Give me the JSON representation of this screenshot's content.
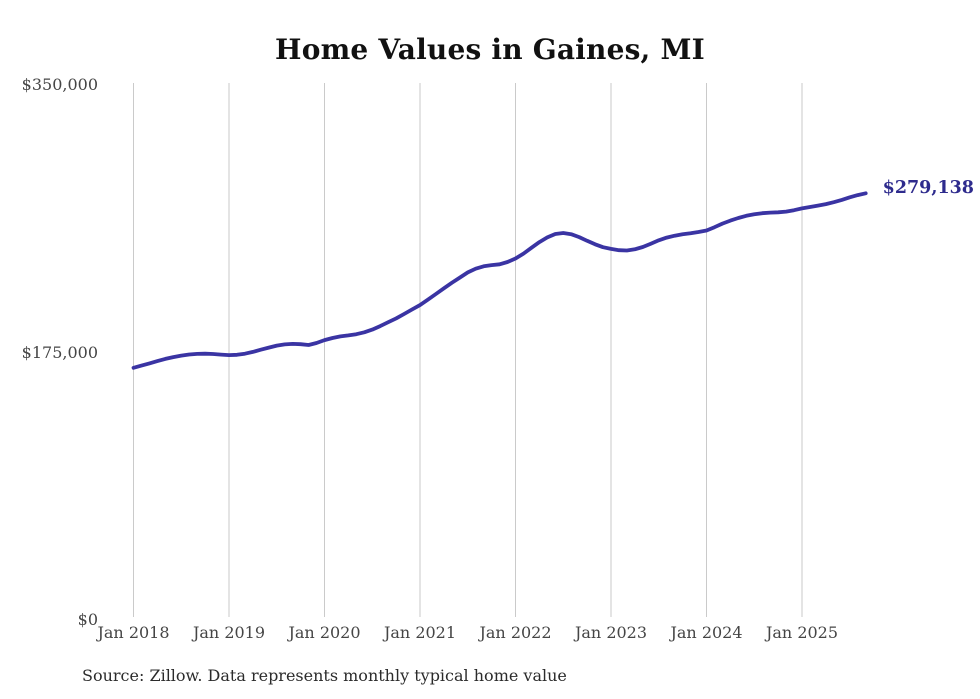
{
  "title": "Home Values in Gaines, MI",
  "source_note": "Source: Zillow. Data represents monthly typical home value",
  "end_label": "$279,138",
  "colors": {
    "line": "#3a34a3",
    "end_label": "#2e2b8d",
    "gridline": "#cacaca",
    "title": "#111111",
    "axis_label": "#454545",
    "source": "#2b2b2b"
  },
  "chart_data": {
    "type": "line",
    "title": "Home Values in Gaines, MI",
    "xlabel": "",
    "ylabel": "",
    "frequency": "monthly",
    "x_start": "Jan 2018",
    "x_end": "Sep 2025",
    "ylim": [
      0,
      350000
    ],
    "grid": "vertical-only",
    "legend": "none",
    "y_ticks": [
      {
        "label": "$350,000",
        "value": 350000
      },
      {
        "label": "$175,000",
        "value": 175000
      },
      {
        "label": "$0",
        "value": 0
      }
    ],
    "x_ticks": [
      {
        "label": "Jan 2018",
        "month_index": 0
      },
      {
        "label": "Jan 2019",
        "month_index": 12
      },
      {
        "label": "Jan 2020",
        "month_index": 24
      },
      {
        "label": "Jan 2021",
        "month_index": 36
      },
      {
        "label": "Jan 2022",
        "month_index": 48
      },
      {
        "label": "Jan 2023",
        "month_index": 60
      },
      {
        "label": "Jan 2024",
        "month_index": 72
      },
      {
        "label": "Jan 2025",
        "month_index": 84
      }
    ],
    "final_value": 279138,
    "series": [
      {
        "name": "Typical home value",
        "values": [
          165000,
          166400,
          167900,
          169400,
          170800,
          172000,
          173000,
          173700,
          174100,
          174200,
          174000,
          173600,
          173300,
          173500,
          174200,
          175400,
          176800,
          178200,
          179500,
          180300,
          180600,
          180400,
          179900,
          181200,
          183100,
          184500,
          185500,
          186200,
          187000,
          188200,
          190000,
          192300,
          194800,
          197300,
          200200,
          203100,
          206000,
          209600,
          213300,
          217000,
          220600,
          224000,
          227400,
          229800,
          231400,
          232200,
          232700,
          234200,
          236500,
          239700,
          243500,
          247200,
          250300,
          252500,
          253200,
          252400,
          250500,
          248100,
          245800,
          243900,
          242800,
          241900,
          241700,
          242500,
          244000,
          246200,
          248400,
          250200,
          251400,
          252300,
          253000,
          253800,
          254800,
          257000,
          259300,
          261300,
          263000,
          264400,
          265400,
          266100,
          266500,
          266700,
          267200,
          268100,
          269300,
          270200,
          271100,
          272100,
          273300,
          274800,
          276500,
          278000,
          279138
        ]
      }
    ]
  }
}
